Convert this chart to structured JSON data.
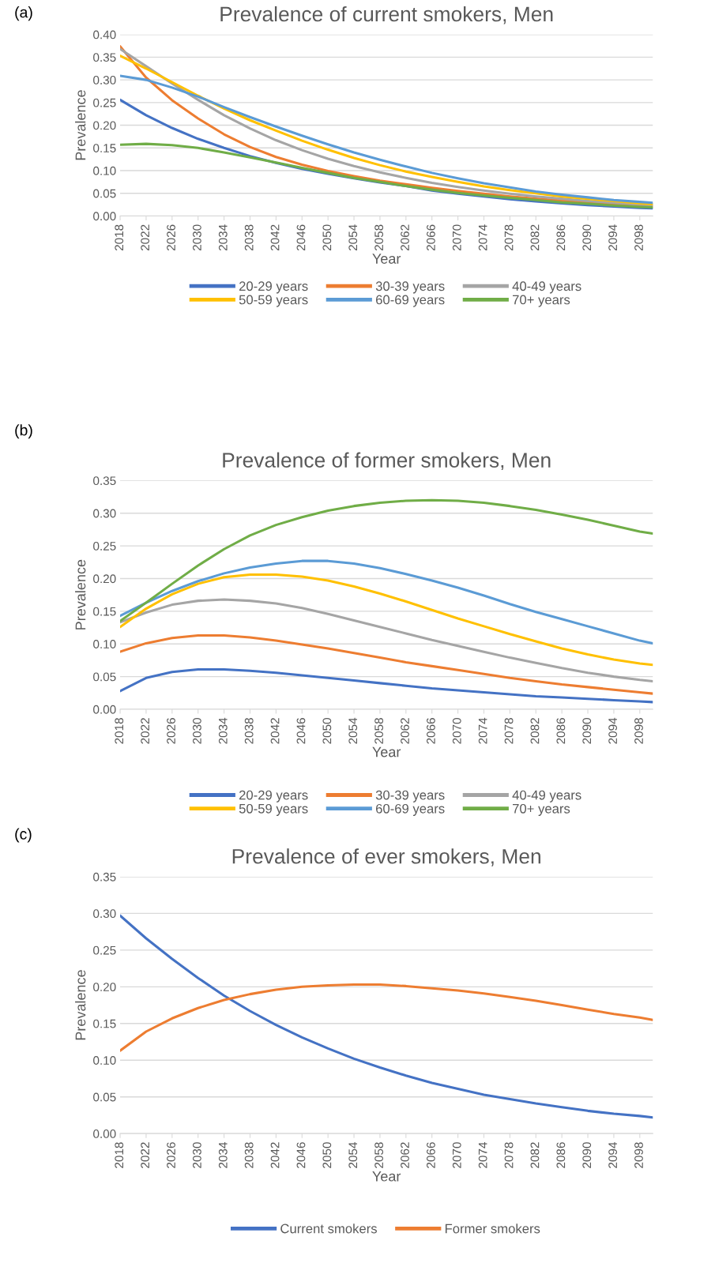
{
  "chart_data": [
    {
      "type": "line",
      "title": "Prevalence of current smokers, Men",
      "xlabel": "Year",
      "ylabel": "Prevalence",
      "annotations": [
        "(a)"
      ],
      "x": [
        2018,
        2022,
        2026,
        2030,
        2034,
        2038,
        2042,
        2046,
        2050,
        2054,
        2058,
        2062,
        2066,
        2070,
        2074,
        2078,
        2082,
        2086,
        2090,
        2094,
        2098,
        2100
      ],
      "xlim": [
        2018,
        2100
      ],
      "xticks": [
        2018,
        2022,
        2026,
        2030,
        2034,
        2038,
        2042,
        2046,
        2050,
        2054,
        2058,
        2062,
        2066,
        2070,
        2074,
        2078,
        2082,
        2086,
        2090,
        2094,
        2098
      ],
      "ylim": [
        0,
        0.4
      ],
      "yticks": [
        {
          "value": 0,
          "label": "0.00"
        },
        {
          "value": 0.05,
          "label": "0.05"
        },
        {
          "value": 0.1,
          "label": "0.10"
        },
        {
          "value": 0.15,
          "label": "0.15"
        },
        {
          "value": 0.2,
          "label": "0.20"
        },
        {
          "value": 0.25,
          "label": "0.25"
        },
        {
          "value": 0.3,
          "label": "0.30"
        },
        {
          "value": 0.35,
          "label": "0.35"
        },
        {
          "value": 0.4,
          "label": "0.40"
        }
      ],
      "grid": "y",
      "legend": "bottom",
      "marker": "none",
      "series": [
        {
          "name": "20-29 years",
          "color": "#4472c4",
          "values": [
            0.256,
            0.222,
            0.194,
            0.17,
            0.15,
            0.132,
            0.117,
            0.104,
            0.093,
            0.083,
            0.074,
            0.066,
            0.056,
            0.049,
            0.043,
            0.037,
            0.032,
            0.028,
            0.024,
            0.021,
            0.018,
            0.017
          ]
        },
        {
          "name": "30-39 years",
          "color": "#ed7d31",
          "values": [
            0.374,
            0.305,
            0.255,
            0.215,
            0.18,
            0.152,
            0.13,
            0.113,
            0.099,
            0.088,
            0.078,
            0.07,
            0.062,
            0.055,
            0.049,
            0.043,
            0.038,
            0.034,
            0.03,
            0.026,
            0.023,
            0.022
          ]
        },
        {
          "name": "40-49 years",
          "color": "#a5a5a5",
          "values": [
            0.368,
            0.33,
            0.292,
            0.256,
            0.222,
            0.193,
            0.167,
            0.145,
            0.126,
            0.11,
            0.096,
            0.084,
            0.073,
            0.064,
            0.056,
            0.049,
            0.043,
            0.038,
            0.033,
            0.029,
            0.025,
            0.024
          ]
        },
        {
          "name": "50-59 years",
          "color": "#ffc000",
          "values": [
            0.353,
            0.325,
            0.295,
            0.265,
            0.237,
            0.211,
            0.188,
            0.166,
            0.146,
            0.128,
            0.112,
            0.098,
            0.086,
            0.075,
            0.065,
            0.057,
            0.05,
            0.043,
            0.038,
            0.033,
            0.028,
            0.026
          ]
        },
        {
          "name": "60-69 years",
          "color": "#5b9bd5",
          "values": [
            0.309,
            0.3,
            0.283,
            0.263,
            0.24,
            0.218,
            0.197,
            0.177,
            0.158,
            0.14,
            0.124,
            0.109,
            0.095,
            0.083,
            0.072,
            0.063,
            0.054,
            0.047,
            0.041,
            0.035,
            0.031,
            0.029
          ]
        },
        {
          "name": "70+ years",
          "color": "#70ad47",
          "values": [
            0.157,
            0.159,
            0.156,
            0.15,
            0.14,
            0.129,
            0.118,
            0.106,
            0.095,
            0.084,
            0.075,
            0.066,
            0.058,
            0.051,
            0.045,
            0.04,
            0.035,
            0.03,
            0.027,
            0.023,
            0.02,
            0.019
          ]
        }
      ]
    },
    {
      "type": "line",
      "title": "Prevalence of former smokers, Men",
      "xlabel": "Year",
      "ylabel": "Prevalence",
      "annotations": [
        "(b)"
      ],
      "x": [
        2018,
        2022,
        2026,
        2030,
        2034,
        2038,
        2042,
        2046,
        2050,
        2054,
        2058,
        2062,
        2066,
        2070,
        2074,
        2078,
        2082,
        2086,
        2090,
        2094,
        2098,
        2100
      ],
      "xlim": [
        2018,
        2100
      ],
      "xticks": [
        2018,
        2022,
        2026,
        2030,
        2034,
        2038,
        2042,
        2046,
        2050,
        2054,
        2058,
        2062,
        2066,
        2070,
        2074,
        2078,
        2082,
        2086,
        2090,
        2094,
        2098
      ],
      "ylim": [
        0,
        0.35
      ],
      "yticks": [
        {
          "value": 0,
          "label": "0.00"
        },
        {
          "value": 0.05,
          "label": "0.05"
        },
        {
          "value": 0.1,
          "label": "0.10"
        },
        {
          "value": 0.15,
          "label": "0.15"
        },
        {
          "value": 0.2,
          "label": "0.20"
        },
        {
          "value": 0.25,
          "label": "0.25"
        },
        {
          "value": 0.3,
          "label": "0.30"
        },
        {
          "value": 0.35,
          "label": "0.35"
        }
      ],
      "grid": "y",
      "legend": "bottom",
      "marker": "none",
      "series": [
        {
          "name": "20-29 years",
          "color": "#4472c4",
          "values": [
            0.028,
            0.048,
            0.057,
            0.061,
            0.061,
            0.059,
            0.056,
            0.052,
            0.048,
            0.044,
            0.04,
            0.036,
            0.032,
            0.029,
            0.026,
            0.023,
            0.02,
            0.018,
            0.016,
            0.014,
            0.012,
            0.011
          ]
        },
        {
          "name": "30-39 years",
          "color": "#ed7d31",
          "values": [
            0.088,
            0.101,
            0.109,
            0.113,
            0.113,
            0.11,
            0.105,
            0.099,
            0.093,
            0.086,
            0.079,
            0.072,
            0.066,
            0.06,
            0.054,
            0.048,
            0.043,
            0.038,
            0.034,
            0.03,
            0.026,
            0.024
          ]
        },
        {
          "name": "40-49 years",
          "color": "#a5a5a5",
          "values": [
            0.133,
            0.148,
            0.16,
            0.166,
            0.168,
            0.166,
            0.162,
            0.155,
            0.146,
            0.136,
            0.126,
            0.116,
            0.106,
            0.097,
            0.088,
            0.079,
            0.071,
            0.063,
            0.056,
            0.05,
            0.045,
            0.043
          ]
        },
        {
          "name": "50-59 years",
          "color": "#ffc000",
          "values": [
            0.126,
            0.154,
            0.176,
            0.192,
            0.202,
            0.206,
            0.206,
            0.203,
            0.197,
            0.188,
            0.177,
            0.165,
            0.152,
            0.139,
            0.127,
            0.115,
            0.104,
            0.093,
            0.084,
            0.076,
            0.07,
            0.068
          ]
        },
        {
          "name": "60-69 years",
          "color": "#5b9bd5",
          "values": [
            0.143,
            0.163,
            0.181,
            0.196,
            0.208,
            0.217,
            0.223,
            0.227,
            0.227,
            0.223,
            0.216,
            0.207,
            0.197,
            0.186,
            0.174,
            0.161,
            0.149,
            0.138,
            0.127,
            0.116,
            0.105,
            0.101
          ]
        },
        {
          "name": "70+ years",
          "color": "#70ad47",
          "values": [
            0.135,
            0.163,
            0.192,
            0.22,
            0.245,
            0.266,
            0.282,
            0.294,
            0.304,
            0.311,
            0.316,
            0.319,
            0.32,
            0.319,
            0.316,
            0.311,
            0.305,
            0.298,
            0.29,
            0.281,
            0.272,
            0.269
          ]
        }
      ]
    },
    {
      "type": "line",
      "title": "Prevalence of ever smokers, Men",
      "xlabel": "Year",
      "ylabel": "Prevalence",
      "annotations": [
        "(c)"
      ],
      "x": [
        2018,
        2022,
        2026,
        2030,
        2034,
        2038,
        2042,
        2046,
        2050,
        2054,
        2058,
        2062,
        2066,
        2070,
        2074,
        2078,
        2082,
        2086,
        2090,
        2094,
        2098,
        2100
      ],
      "xlim": [
        2018,
        2100
      ],
      "xticks": [
        2018,
        2022,
        2026,
        2030,
        2034,
        2038,
        2042,
        2046,
        2050,
        2054,
        2058,
        2062,
        2066,
        2070,
        2074,
        2078,
        2082,
        2086,
        2090,
        2094,
        2098
      ],
      "ylim": [
        0,
        0.35
      ],
      "yticks": [
        {
          "value": 0,
          "label": "0.00"
        },
        {
          "value": 0.05,
          "label": "0.05"
        },
        {
          "value": 0.1,
          "label": "0.10"
        },
        {
          "value": 0.15,
          "label": "0.15"
        },
        {
          "value": 0.2,
          "label": "0.20"
        },
        {
          "value": 0.25,
          "label": "0.25"
        },
        {
          "value": 0.3,
          "label": "0.30"
        },
        {
          "value": 0.35,
          "label": "0.35"
        }
      ],
      "grid": "y",
      "legend": "bottom",
      "marker": "none",
      "series": [
        {
          "name": "Current smokers",
          "color": "#4472c4",
          "values": [
            0.297,
            0.266,
            0.238,
            0.212,
            0.188,
            0.167,
            0.148,
            0.131,
            0.116,
            0.102,
            0.09,
            0.079,
            0.069,
            0.061,
            0.053,
            0.047,
            0.041,
            0.036,
            0.031,
            0.027,
            0.024,
            0.022
          ]
        },
        {
          "name": "Former smokers",
          "color": "#ed7d31",
          "values": [
            0.113,
            0.139,
            0.157,
            0.171,
            0.182,
            0.19,
            0.196,
            0.2,
            0.202,
            0.203,
            0.203,
            0.201,
            0.198,
            0.195,
            0.191,
            0.186,
            0.181,
            0.175,
            0.169,
            0.163,
            0.158,
            0.155
          ]
        }
      ]
    }
  ]
}
